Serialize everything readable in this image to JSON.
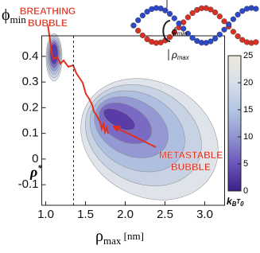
{
  "chart_data": {
    "type": "contour",
    "ylabel": [
      "ϕ",
      "min"
    ],
    "xlabel": [
      "ρ",
      "max",
      " [nm]"
    ],
    "xlim": [
      0.95,
      3.25
    ],
    "xticks": [
      {
        "value": 1,
        "label": "1.0"
      },
      1.5,
      {
        "value": 2,
        "label": "2.0"
      },
      2.5,
      {
        "value": 3,
        "label": "3.0"
      }
    ],
    "ylim": [
      -0.18,
      0.48
    ],
    "yticks": [
      0.4,
      0.3,
      0.2,
      0.1,
      0,
      -0.1
    ],
    "vline": 1.35,
    "vline_label": [
      "ρ",
      "*"
    ],
    "levels": [
      22,
      18,
      14,
      10,
      6,
      3
    ],
    "level_colors": [
      "#dfe4ea",
      "#c7d3e5",
      "#afbfe0",
      "#9498d3",
      "#7a6ac3",
      "#5a3ca7"
    ],
    "clim": [
      0,
      25
    ],
    "cticks": [
      0,
      5,
      10,
      15,
      20,
      25
    ],
    "colorscale": [
      "#3c1f8a",
      "#6b55bb",
      "#8e95d0",
      "#b4c6e2",
      "#d6e0ea",
      "#ece8dc"
    ],
    "colorbar_label": [
      "k",
      "B",
      "T",
      "0"
    ],
    "annotations": [
      [
        "BREATHING",
        "BUBBLE"
      ],
      [
        "METASTABLE",
        "BUBBLE"
      ]
    ],
    "inset_labels": [
      [
        "ϕ",
        "min"
      ],
      [
        "ρ",
        "max"
      ]
    ]
  }
}
